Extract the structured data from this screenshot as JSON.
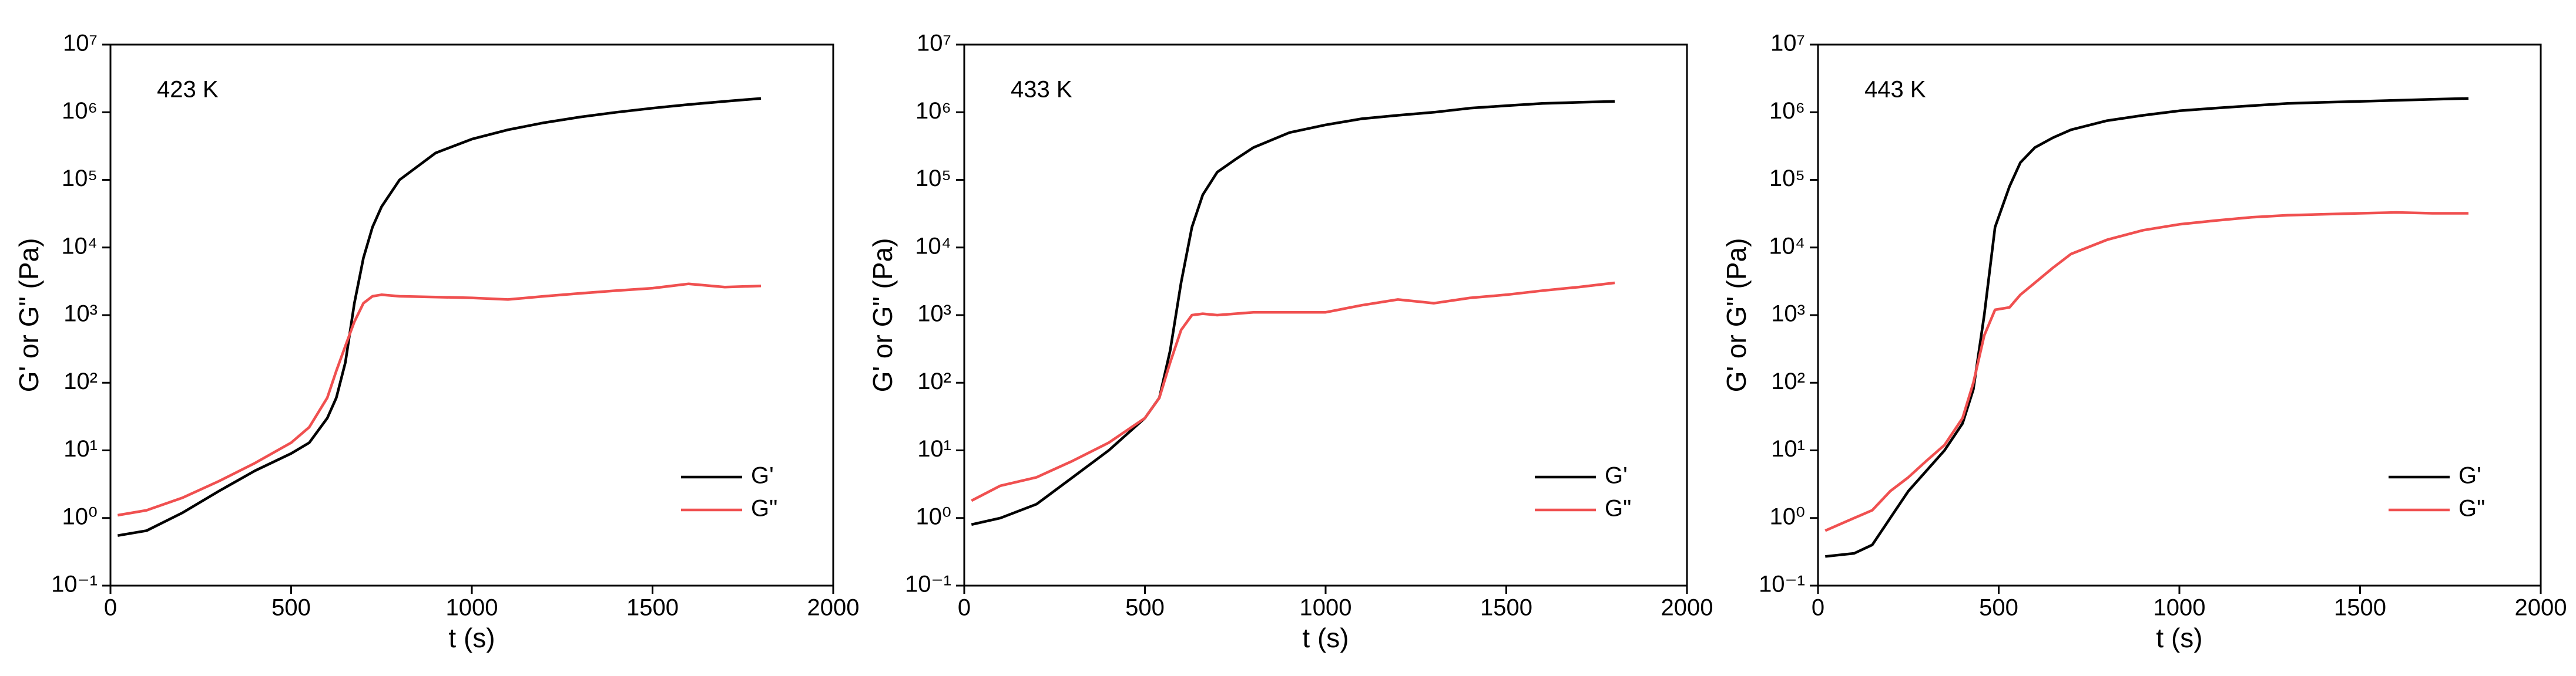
{
  "chart_data": [
    {
      "type": "line",
      "annotation": "423 K",
      "xlabel": "t (s)",
      "ylabel": "G' or G\" (Pa)",
      "xlim": [
        0,
        2000
      ],
      "xticks": [
        0,
        500,
        1000,
        1500,
        2000
      ],
      "ylim": [
        0.1,
        10000000
      ],
      "ylog": true,
      "yticks": [
        {
          "value": 0.1,
          "label": "10⁻¹"
        },
        {
          "value": 1,
          "label": "10⁰"
        },
        {
          "value": 10,
          "label": "10¹"
        },
        {
          "value": 100,
          "label": "10²"
        },
        {
          "value": 1000,
          "label": "10³"
        },
        {
          "value": 10000,
          "label": "10⁴"
        },
        {
          "value": 100000,
          "label": "10⁵"
        },
        {
          "value": 1000000,
          "label": "10⁶"
        },
        {
          "value": 10000000,
          "label": "10⁷"
        }
      ],
      "legend": "lower right",
      "x": [
        20,
        100,
        200,
        300,
        400,
        500,
        550,
        600,
        625,
        650,
        675,
        700,
        725,
        750,
        800,
        900,
        1000,
        1100,
        1200,
        1300,
        1400,
        1500,
        1600,
        1700,
        1800
      ],
      "series": [
        {
          "name": "G'",
          "color": "#000000",
          "values": [
            0.55,
            0.65,
            1.2,
            2.5,
            5,
            9,
            13,
            30,
            60,
            200,
            1500,
            7000,
            20000,
            40000,
            100000,
            250000,
            400000,
            550000,
            700000,
            850000,
            1000000,
            1150000,
            1300000,
            1450000,
            1600000
          ]
        },
        {
          "name": "G\"",
          "color": "#f05050",
          "values": [
            1.1,
            1.3,
            2,
            3.5,
            6.5,
            13,
            22,
            60,
            150,
            350,
            800,
            1500,
            1900,
            2000,
            1900,
            1850,
            1800,
            1700,
            1900,
            2100,
            2300,
            2500,
            2900,
            2600,
            2700
          ]
        }
      ]
    },
    {
      "type": "line",
      "annotation": "433 K",
      "xlabel": "t (s)",
      "ylabel": "G' or G\" (Pa)",
      "xlim": [
        0,
        2000
      ],
      "xticks": [
        0,
        500,
        1000,
        1500,
        2000
      ],
      "ylim": [
        0.1,
        10000000
      ],
      "ylog": true,
      "yticks": [
        {
          "value": 0.1,
          "label": "10⁻¹"
        },
        {
          "value": 1,
          "label": "10⁰"
        },
        {
          "value": 10,
          "label": "10¹"
        },
        {
          "value": 100,
          "label": "10²"
        },
        {
          "value": 1000,
          "label": "10³"
        },
        {
          "value": 10000,
          "label": "10⁴"
        },
        {
          "value": 100000,
          "label": "10⁵"
        },
        {
          "value": 1000000,
          "label": "10⁶"
        },
        {
          "value": 10000000,
          "label": "10⁷"
        }
      ],
      "legend": "lower right",
      "x": [
        20,
        100,
        200,
        300,
        400,
        500,
        540,
        570,
        600,
        630,
        660,
        700,
        750,
        800,
        900,
        1000,
        1100,
        1200,
        1300,
        1400,
        1500,
        1600,
        1700,
        1800
      ],
      "series": [
        {
          "name": "G'",
          "color": "#000000",
          "values": [
            0.8,
            1,
            1.6,
            4,
            10,
            30,
            60,
            300,
            3000,
            20000,
            60000,
            130000,
            200000,
            300000,
            500000,
            650000,
            800000,
            900000,
            1000000,
            1150000,
            1250000,
            1350000,
            1400000,
            1450000
          ]
        },
        {
          "name": "G\"",
          "color": "#f05050",
          "values": [
            1.8,
            3,
            4,
            7,
            13,
            30,
            60,
            200,
            600,
            1000,
            1050,
            1000,
            1050,
            1100,
            1100,
            1100,
            1400,
            1700,
            1500,
            1800,
            2000,
            2300,
            2600,
            3000
          ]
        }
      ]
    },
    {
      "type": "line",
      "annotation": "443 K",
      "xlabel": "t (s)",
      "ylabel": "G' or G\" (Pa)",
      "xlim": [
        0,
        2000
      ],
      "xticks": [
        0,
        500,
        1000,
        1500,
        2000
      ],
      "ylim": [
        0.1,
        10000000
      ],
      "ylog": true,
      "yticks": [
        {
          "value": 0.1,
          "label": "10⁻¹"
        },
        {
          "value": 1,
          "label": "10⁰"
        },
        {
          "value": 10,
          "label": "10¹"
        },
        {
          "value": 100,
          "label": "10²"
        },
        {
          "value": 1000,
          "label": "10³"
        },
        {
          "value": 10000,
          "label": "10⁴"
        },
        {
          "value": 100000,
          "label": "10⁵"
        },
        {
          "value": 1000000,
          "label": "10⁶"
        },
        {
          "value": 10000000,
          "label": "10⁷"
        }
      ],
      "legend": "lower right",
      "x": [
        20,
        100,
        150,
        200,
        250,
        300,
        350,
        400,
        430,
        460,
        490,
        530,
        560,
        600,
        650,
        700,
        800,
        900,
        1000,
        1100,
        1200,
        1300,
        1400,
        1500,
        1600,
        1700,
        1800
      ],
      "series": [
        {
          "name": "G'",
          "color": "#000000",
          "values": [
            0.27,
            0.3,
            0.4,
            1,
            2.5,
            5,
            10,
            25,
            80,
            1000,
            20000,
            80000,
            180000,
            300000,
            420000,
            550000,
            750000,
            900000,
            1050000,
            1150000,
            1250000,
            1350000,
            1400000,
            1450000,
            1500000,
            1550000,
            1600000
          ]
        },
        {
          "name": "G\"",
          "color": "#f05050",
          "values": [
            0.65,
            1,
            1.3,
            2.5,
            4,
            7,
            12,
            30,
            100,
            500,
            1200,
            1300,
            2000,
            3000,
            5000,
            8000,
            13000,
            18000,
            22000,
            25000,
            28000,
            30000,
            31000,
            32000,
            33000,
            32000,
            32000
          ]
        }
      ]
    }
  ]
}
